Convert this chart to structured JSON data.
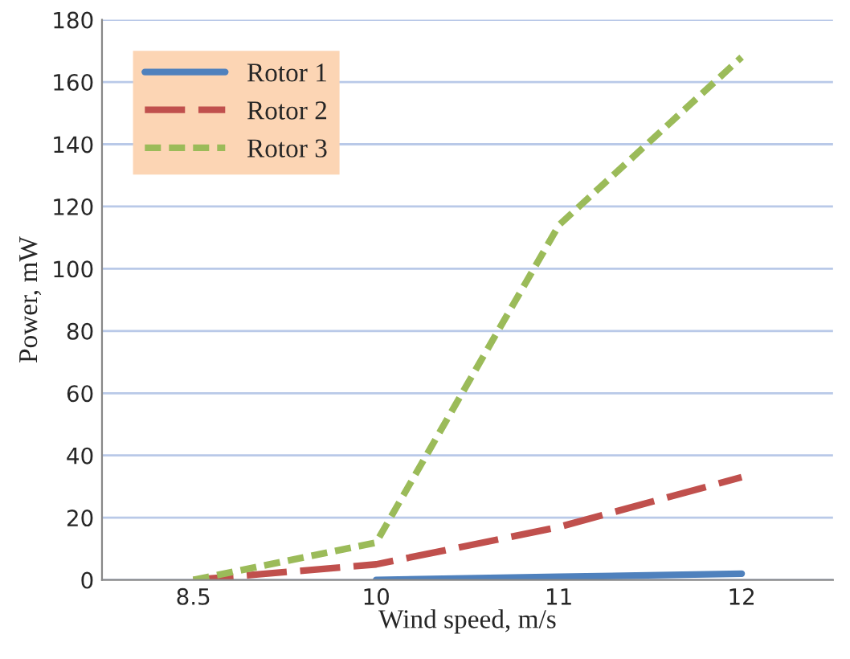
{
  "chart_data": {
    "type": "line",
    "xlabel": "Wind speed, m/s",
    "ylabel": "Power, mW",
    "categories": [
      "8.5",
      "10",
      "11",
      "12"
    ],
    "series": [
      {
        "name": "Rotor 1",
        "color": "#4f81bd",
        "values": [
          null,
          0,
          1,
          2
        ],
        "line_style": "solid"
      },
      {
        "name": "Rotor 2",
        "color": "#c0504d",
        "values": [
          0,
          5,
          17,
          33
        ],
        "line_style": "dashed"
      },
      {
        "name": "Rotor 3",
        "color": "#9bbb59",
        "values": [
          0,
          12,
          114,
          168
        ],
        "line_style": "dashed"
      }
    ],
    "ylim": [
      0,
      180
    ],
    "yticks": [
      0,
      20,
      40,
      60,
      80,
      100,
      120,
      140,
      160,
      180
    ],
    "grid": "y",
    "legend": "top left"
  }
}
